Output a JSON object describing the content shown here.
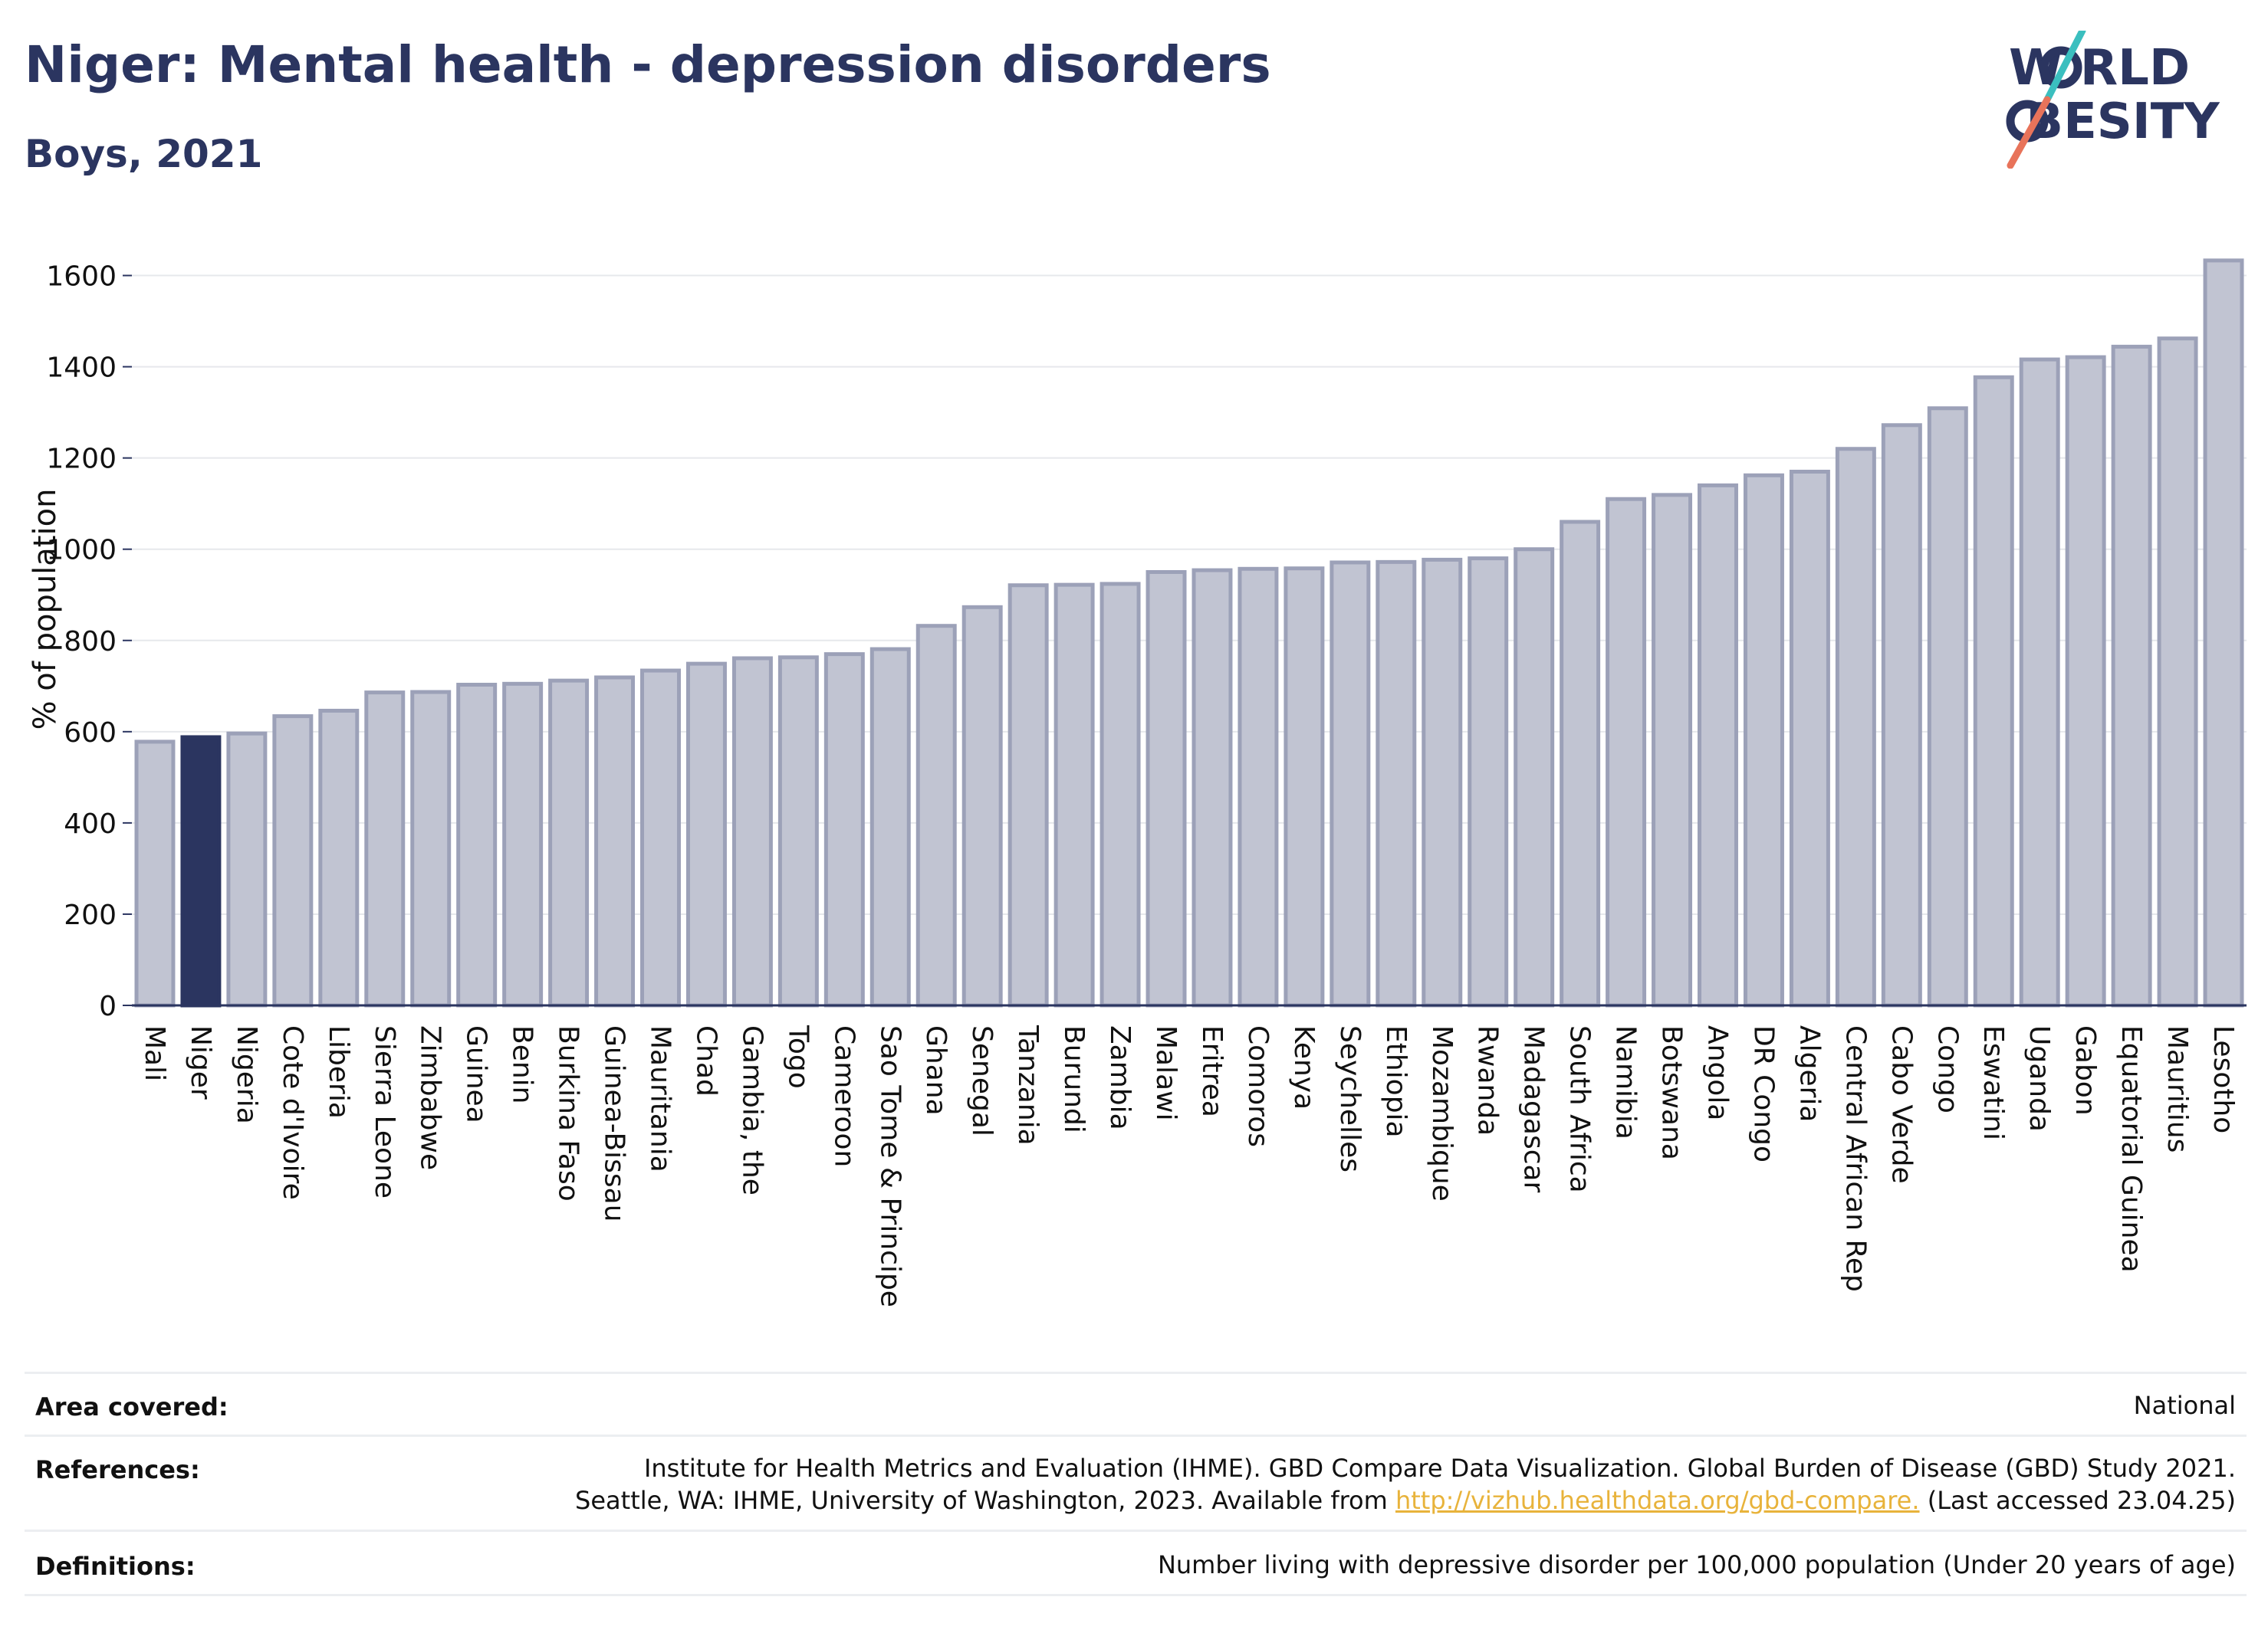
{
  "header": {
    "title": "Niger: Mental health - depression disorders",
    "subtitle": "Boys, 2021"
  },
  "logo": {
    "line1": "W RLD",
    "line2": "BESITY",
    "text": "WORLD OBESITY",
    "colors": {
      "text": "#2b3560",
      "slash_top": "#3bbfbf",
      "slash_bottom": "#e8735a"
    }
  },
  "colors": {
    "bar_default": "#c1c4d2",
    "bar_stroke": "#9ca1b8",
    "bar_highlight": "#2b3560",
    "axis": "#2b3560",
    "grid": "#e6e8ec",
    "text": "#111111"
  },
  "chart_data": {
    "type": "bar",
    "title": "",
    "xlabel": "",
    "ylabel": "% of population",
    "ylim": [
      0,
      1700
    ],
    "yticks": [
      0,
      200,
      400,
      600,
      800,
      1000,
      1200,
      1400,
      1600
    ],
    "grid": true,
    "highlight": "Niger",
    "categories": [
      "Mali",
      "Niger",
      "Nigeria",
      "Cote d'Ivoire",
      "Liberia",
      "Sierra Leone",
      "Zimbabwe",
      "Guinea",
      "Benin",
      "Burkina Faso",
      "Guinea-Bissau",
      "Mauritania",
      "Chad",
      "Gambia, the",
      "Togo",
      "Cameroon",
      "Sao Tome & Principe",
      "Ghana",
      "Senegal",
      "Tanzania",
      "Burundi",
      "Zambia",
      "Malawi",
      "Eritrea",
      "Comoros",
      "Kenya",
      "Seychelles",
      "Ethiopia",
      "Mozambique",
      "Rwanda",
      "Madagascar",
      "South Africa",
      "Namibia",
      "Botswana",
      "Angola",
      "DR Congo",
      "Algeria",
      "Central African Rep",
      "Cabo Verde",
      "Congo",
      "Eswatini",
      "Uganda",
      "Gabon",
      "Equatorial Guinea",
      "Mauritius",
      "Lesotho"
    ],
    "values": [
      578,
      588,
      596,
      634,
      646,
      686,
      687,
      703,
      705,
      712,
      719,
      734,
      749,
      761,
      763,
      770,
      781,
      832,
      873,
      921,
      922,
      924,
      950,
      954,
      957,
      958,
      971,
      972,
      977,
      980,
      1000,
      1060,
      1110,
      1119,
      1140,
      1162,
      1170,
      1220,
      1272,
      1309,
      1377,
      1416,
      1421,
      1444,
      1462,
      1633
    ]
  },
  "info": {
    "area_label": "Area covered:",
    "area_value": "National",
    "references_label": "References:",
    "references_line1": "Institute for Health Metrics and Evaluation (IHME). GBD Compare Data Visualization. Global Burden of Disease (GBD) Study 2021.",
    "references_line2_pre": "Seattle, WA: IHME, University of Washington, 2023. Available from ",
    "references_link": "http://vizhub.healthdata.org/gbd-compare.",
    "references_line2_post": " (Last accessed 23.04.25)",
    "definitions_label": "Definitions:",
    "definitions_value": "Number living with depressive disorder per 100,000 population (Under 20 years of age)"
  }
}
